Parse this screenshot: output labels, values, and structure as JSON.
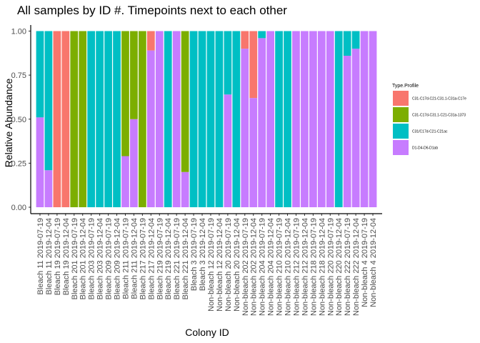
{
  "chart_data": {
    "type": "bar",
    "stacked": true,
    "title": "All samples by ID #. Timepoints next to each other",
    "xlabel": "Colony ID",
    "ylabel": "Relative Abundance",
    "ylim": [
      0,
      1
    ],
    "yticks": [
      "0.00",
      "0.25",
      "0.50",
      "0.75",
      "1.00"
    ],
    "legend_position": "right",
    "legend_title": "Type.Profile",
    "grid": false,
    "categories": [
      "Bleach 11 2019-07-19",
      "Bleach 11 2019-12-04",
      "Bleach 19 2019-07-19",
      "Bleach 19 2019-12-04",
      "Bleach 201 2019-07-19",
      "Bleach 201 2019-12-04",
      "Bleach 203 2019-07-19",
      "Bleach 203 2019-12-04",
      "Bleach 209 2019-07-19",
      "Bleach 209 2019-12-04",
      "Bleach 211 2019-07-19",
      "Bleach 211 2019-12-04",
      "Bleach 217 2019-07-19",
      "Bleach 217 2019-12-04",
      "Bleach 219 2019-07-19",
      "Bleach 219 2019-12-04",
      "Bleach 221 2019-07-19",
      "Bleach 221 2019-12-04",
      "Bleach 3 2019-07-19",
      "Bleach 3 2019-12-04",
      "Non-bleach 12 2019-07-19",
      "Non-bleach 12 2019-12-04",
      "Non-bleach 20 2019-07-19",
      "Non-bleach 20 2019-12-04",
      "Non-bleach 202 2019-07-19",
      "Non-bleach 202 2019-12-04",
      "Non-bleach 204 2019-07-19",
      "Non-bleach 204 2019-12-04",
      "Non-bleach 210 2019-07-19",
      "Non-bleach 210 2019-12-04",
      "Non-bleach 212 2019-07-19",
      "Non-bleach 212 2019-12-04",
      "Non-bleach 218 2019-07-19",
      "Non-bleach 218 2019-12-04",
      "Non-bleach 220 2019-07-19",
      "Non-bleach 220 2019-12-04",
      "Non-bleach 222 2019-07-19",
      "Non-bleach 222 2019-12-04",
      "Non-bleach 4 2019-07-19",
      "Non-bleach 4 2019-12-04"
    ],
    "series": [
      {
        "name": "D1-D4-D6-D1ab",
        "color": "#C77CFF",
        "values": [
          0.51,
          0.21,
          0,
          0,
          0,
          0,
          0,
          0,
          0,
          0,
          0.29,
          0.5,
          0,
          0.89,
          1,
          0,
          1,
          0.2,
          0,
          0,
          0,
          0,
          0.64,
          0,
          0.9,
          0.62,
          0.96,
          1,
          0,
          0,
          1,
          1,
          1,
          1,
          1,
          0,
          0.86,
          0.9,
          1,
          1
        ]
      },
      {
        "name": "C31/C17d-C21-C21ac",
        "color": "#00BFC4",
        "values": [
          0.49,
          0.79,
          0,
          0,
          0,
          0,
          1,
          1,
          1,
          1,
          0,
          0,
          0,
          0,
          0,
          1,
          0,
          0,
          1,
          1,
          1,
          1,
          0.36,
          1,
          0,
          0,
          0.04,
          0,
          1,
          1,
          0,
          0,
          0,
          0,
          0,
          1,
          0.14,
          0.1,
          0,
          0
        ]
      },
      {
        "name": "C31-C17d-C31.1-C21-C31a-1373",
        "color": "#7CAE00",
        "values": [
          0,
          0,
          0,
          0,
          1,
          1,
          0,
          0,
          0,
          0,
          0.71,
          0.5,
          1,
          0,
          0,
          0,
          0,
          0.8,
          0,
          0,
          0,
          0,
          0,
          0,
          0,
          0,
          0,
          0,
          0,
          0,
          0,
          0,
          0,
          0,
          0,
          0,
          0,
          0,
          0,
          0
        ]
      },
      {
        "name": "C31-C17d-C21-C31.1-C31a-C17e",
        "color": "#F8766D",
        "values": [
          0,
          0,
          1,
          1,
          0,
          0,
          0,
          0,
          0,
          0,
          0,
          0,
          0,
          0.11,
          0,
          0,
          0,
          0,
          0,
          0,
          0,
          0,
          0,
          0,
          0.1,
          0.38,
          0,
          0,
          0,
          0,
          0,
          0,
          0,
          0,
          0,
          0,
          0,
          0,
          0,
          0
        ]
      }
    ],
    "legend_order": [
      3,
      2,
      1,
      0
    ]
  }
}
